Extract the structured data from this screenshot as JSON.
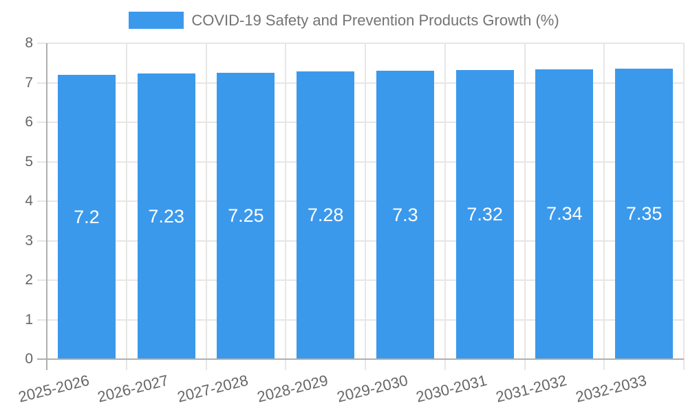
{
  "chart_data": {
    "type": "bar",
    "title": "COVID-19 Safety and Prevention Products Growth (%)",
    "categories": [
      "2025-2026",
      "2026-2027",
      "2027-2028",
      "2028-2029",
      "2029-2030",
      "2030-2031",
      "2031-2032",
      "2032-2033"
    ],
    "values": [
      7.2,
      7.23,
      7.25,
      7.28,
      7.3,
      7.32,
      7.34,
      7.35
    ],
    "value_labels": [
      "7.2",
      "7.23",
      "7.25",
      "7.28",
      "7.3",
      "7.32",
      "7.34",
      "7.35"
    ],
    "xlabel": "",
    "ylabel": "",
    "ylim": [
      0,
      8
    ],
    "y_ticks": [
      0,
      1,
      2,
      3,
      4,
      5,
      6,
      7,
      8
    ],
    "grid": true,
    "legend_position": "top",
    "colors": {
      "bar": "#3B99EC",
      "bar_label": "#FFFFFF",
      "grid_line": "#E6E6E6",
      "axis_line": "#AFAFAF",
      "axis_text": "#666666",
      "title_text": "#737373",
      "background": "#FFFFFF"
    }
  }
}
